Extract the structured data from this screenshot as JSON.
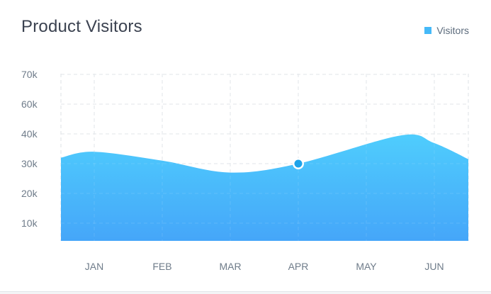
{
  "header": {
    "title": "Product Visitors",
    "legend_label": "Visitors"
  },
  "colors": {
    "area_top": "#4fcdfd",
    "area_bottom": "#45a6f9",
    "marker": "#1ea3ea",
    "grid": "#dde1e6"
  },
  "chart_data": {
    "type": "area",
    "title": "Product Visitors",
    "xlabel": "",
    "ylabel": "",
    "categories": [
      "JAN",
      "FEB",
      "MAR",
      "APR",
      "MAY",
      "JUN"
    ],
    "y_ticks": [
      "10k",
      "20k",
      "30k",
      "40k",
      "60k",
      "70k"
    ],
    "series": [
      {
        "name": "Visitors",
        "values": [
          34,
          31,
          27,
          30,
          38,
          38
        ]
      }
    ],
    "edge_values": {
      "start": 32,
      "end": 31.5
    },
    "highlighted_point": {
      "category": "APR",
      "value": 30
    },
    "grid": true,
    "legend_position": "top-right"
  }
}
